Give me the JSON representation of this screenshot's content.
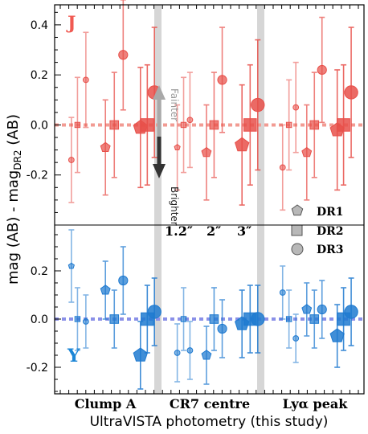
{
  "chart_data": {
    "type": "scatter",
    "xlabel": "UltraVISTA photometry (this study)",
    "ylabel_pre": "mag (AB) - mag",
    "ylabel_sub": "DR2",
    "ylabel_post": " (AB)",
    "groups": [
      "Clump A",
      "CR7 centre",
      "Lyα peak"
    ],
    "aperture_labels": [
      "1.2″",
      "2″",
      "3″"
    ],
    "legend": [
      "DR1",
      "DR2",
      "DR3"
    ],
    "arrow_fainter": "Fainter",
    "arrow_brighter": "Brighter",
    "colors": {
      "J": "#e8504a",
      "Y": "#1f7ad0",
      "J_line": "#f29b93",
      "Y_line": "#8a90e8",
      "band_gray": "#d6d6d6"
    },
    "panels": [
      {
        "band": "J",
        "ylim": [
          -0.4,
          0.48
        ],
        "yticks": [
          -0.2,
          0.0,
          0.2,
          0.4
        ],
        "ytick_labels": [
          "-0.2",
          "0.0",
          "0.2",
          "0.4"
        ],
        "points": [
          {
            "x": 0.28,
            "y": -0.14,
            "err": 0.17,
            "marker": "circle",
            "size": "small"
          },
          {
            "x": 0.52,
            "y": 0.0,
            "err": 0.19,
            "marker": "square",
            "size": "small"
          },
          {
            "x": 0.85,
            "y": 0.18,
            "err": 0.19,
            "marker": "circle",
            "size": "small"
          },
          {
            "x": 1.62,
            "y": -0.09,
            "err": 0.19,
            "marker": "pentagon",
            "size": "medium"
          },
          {
            "x": 1.97,
            "y": 0.0,
            "err": 0.21,
            "marker": "square",
            "size": "medium"
          },
          {
            "x": 2.32,
            "y": 0.28,
            "err": 0.22,
            "marker": "circle",
            "size": "medium"
          },
          {
            "x": 3.0,
            "y": -0.01,
            "err": 0.24,
            "marker": "pentagon",
            "size": "large"
          },
          {
            "x": 3.27,
            "y": 0.0,
            "err": 0.24,
            "marker": "square",
            "size": "large"
          },
          {
            "x": 3.55,
            "y": 0.13,
            "err": 0.26,
            "marker": "circle",
            "size": "large"
          },
          {
            "x": 4.45,
            "y": -0.09,
            "err": 0.17,
            "marker": "pentagon",
            "size": "small"
          },
          {
            "x": 4.7,
            "y": 0.0,
            "err": 0.19,
            "marker": "square",
            "size": "small"
          },
          {
            "x": 4.95,
            "y": 0.02,
            "err": 0.19,
            "marker": "circle",
            "size": "small"
          },
          {
            "x": 5.6,
            "y": -0.11,
            "err": 0.19,
            "marker": "pentagon",
            "size": "medium"
          },
          {
            "x": 5.9,
            "y": 0.0,
            "err": 0.21,
            "marker": "square",
            "size": "medium"
          },
          {
            "x": 6.22,
            "y": 0.18,
            "err": 0.21,
            "marker": "circle",
            "size": "medium"
          },
          {
            "x": 7.0,
            "y": -0.08,
            "err": 0.24,
            "marker": "pentagon",
            "size": "large"
          },
          {
            "x": 7.32,
            "y": 0.0,
            "err": 0.24,
            "marker": "square",
            "size": "large"
          },
          {
            "x": 7.62,
            "y": 0.08,
            "err": 0.26,
            "marker": "circle",
            "size": "large"
          },
          {
            "x": 8.6,
            "y": -0.17,
            "err": 0.17,
            "marker": "circle",
            "size": "small"
          },
          {
            "x": 8.85,
            "y": 0.0,
            "err": 0.18,
            "marker": "square",
            "size": "small"
          },
          {
            "x": 9.12,
            "y": 0.07,
            "err": 0.18,
            "marker": "circle",
            "size": "small"
          },
          {
            "x": 9.55,
            "y": -0.11,
            "err": 0.19,
            "marker": "pentagon",
            "size": "medium"
          },
          {
            "x": 9.85,
            "y": 0.0,
            "err": 0.21,
            "marker": "square",
            "size": "medium"
          },
          {
            "x": 10.15,
            "y": 0.22,
            "err": 0.21,
            "marker": "circle",
            "size": "medium"
          },
          {
            "x": 10.75,
            "y": -0.02,
            "err": 0.24,
            "marker": "pentagon",
            "size": "large"
          },
          {
            "x": 11.0,
            "y": 0.0,
            "err": 0.24,
            "marker": "square",
            "size": "large"
          },
          {
            "x": 11.3,
            "y": 0.13,
            "err": 0.26,
            "marker": "circle",
            "size": "large"
          }
        ]
      },
      {
        "band": "Y",
        "ylim": [
          -0.31,
          0.39
        ],
        "yticks": [
          -0.2,
          0.0,
          0.2
        ],
        "ytick_labels": [
          "-0.2",
          "0.0",
          "0.2"
        ],
        "points": [
          {
            "x": 0.28,
            "y": 0.22,
            "err": 0.15,
            "marker": "pentagon",
            "size": "small"
          },
          {
            "x": 0.52,
            "y": 0.0,
            "err": 0.13,
            "marker": "square",
            "size": "small"
          },
          {
            "x": 0.85,
            "y": -0.01,
            "err": 0.11,
            "marker": "circle",
            "size": "small"
          },
          {
            "x": 1.62,
            "y": 0.12,
            "err": 0.12,
            "marker": "pentagon",
            "size": "medium"
          },
          {
            "x": 1.97,
            "y": 0.0,
            "err": 0.12,
            "marker": "square",
            "size": "medium"
          },
          {
            "x": 2.32,
            "y": 0.16,
            "err": 0.14,
            "marker": "circle",
            "size": "medium"
          },
          {
            "x": 3.0,
            "y": -0.15,
            "err": 0.14,
            "marker": "pentagon",
            "size": "large"
          },
          {
            "x": 3.27,
            "y": 0.0,
            "err": 0.14,
            "marker": "square",
            "size": "large"
          },
          {
            "x": 3.55,
            "y": 0.03,
            "err": 0.14,
            "marker": "circle",
            "size": "large"
          },
          {
            "x": 4.45,
            "y": -0.14,
            "err": 0.12,
            "marker": "circle",
            "size": "small"
          },
          {
            "x": 4.7,
            "y": 0.0,
            "err": 0.13,
            "marker": "square",
            "size": "small"
          },
          {
            "x": 4.95,
            "y": -0.13,
            "err": 0.12,
            "marker": "circle",
            "size": "small"
          },
          {
            "x": 5.6,
            "y": -0.15,
            "err": 0.12,
            "marker": "pentagon",
            "size": "medium"
          },
          {
            "x": 5.9,
            "y": 0.0,
            "err": 0.13,
            "marker": "square",
            "size": "medium"
          },
          {
            "x": 6.22,
            "y": -0.04,
            "err": 0.12,
            "marker": "circle",
            "size": "medium"
          },
          {
            "x": 7.0,
            "y": -0.02,
            "err": 0.14,
            "marker": "pentagon",
            "size": "large"
          },
          {
            "x": 7.32,
            "y": 0.0,
            "err": 0.14,
            "marker": "square",
            "size": "large"
          },
          {
            "x": 7.62,
            "y": 0.0,
            "err": 0.14,
            "marker": "circle",
            "size": "large"
          },
          {
            "x": 8.6,
            "y": 0.11,
            "err": 0.11,
            "marker": "circle",
            "size": "small"
          },
          {
            "x": 8.85,
            "y": 0.0,
            "err": 0.12,
            "marker": "square",
            "size": "small"
          },
          {
            "x": 9.12,
            "y": -0.08,
            "err": 0.1,
            "marker": "circle",
            "size": "small"
          },
          {
            "x": 9.55,
            "y": 0.04,
            "err": 0.11,
            "marker": "pentagon",
            "size": "medium"
          },
          {
            "x": 9.85,
            "y": 0.0,
            "err": 0.12,
            "marker": "square",
            "size": "medium"
          },
          {
            "x": 10.15,
            "y": 0.04,
            "err": 0.12,
            "marker": "circle",
            "size": "medium"
          },
          {
            "x": 10.75,
            "y": -0.07,
            "err": 0.13,
            "marker": "pentagon",
            "size": "large"
          },
          {
            "x": 11.0,
            "y": 0.0,
            "err": 0.13,
            "marker": "square",
            "size": "large"
          },
          {
            "x": 11.3,
            "y": 0.03,
            "err": 0.14,
            "marker": "circle",
            "size": "large"
          }
        ]
      }
    ]
  }
}
